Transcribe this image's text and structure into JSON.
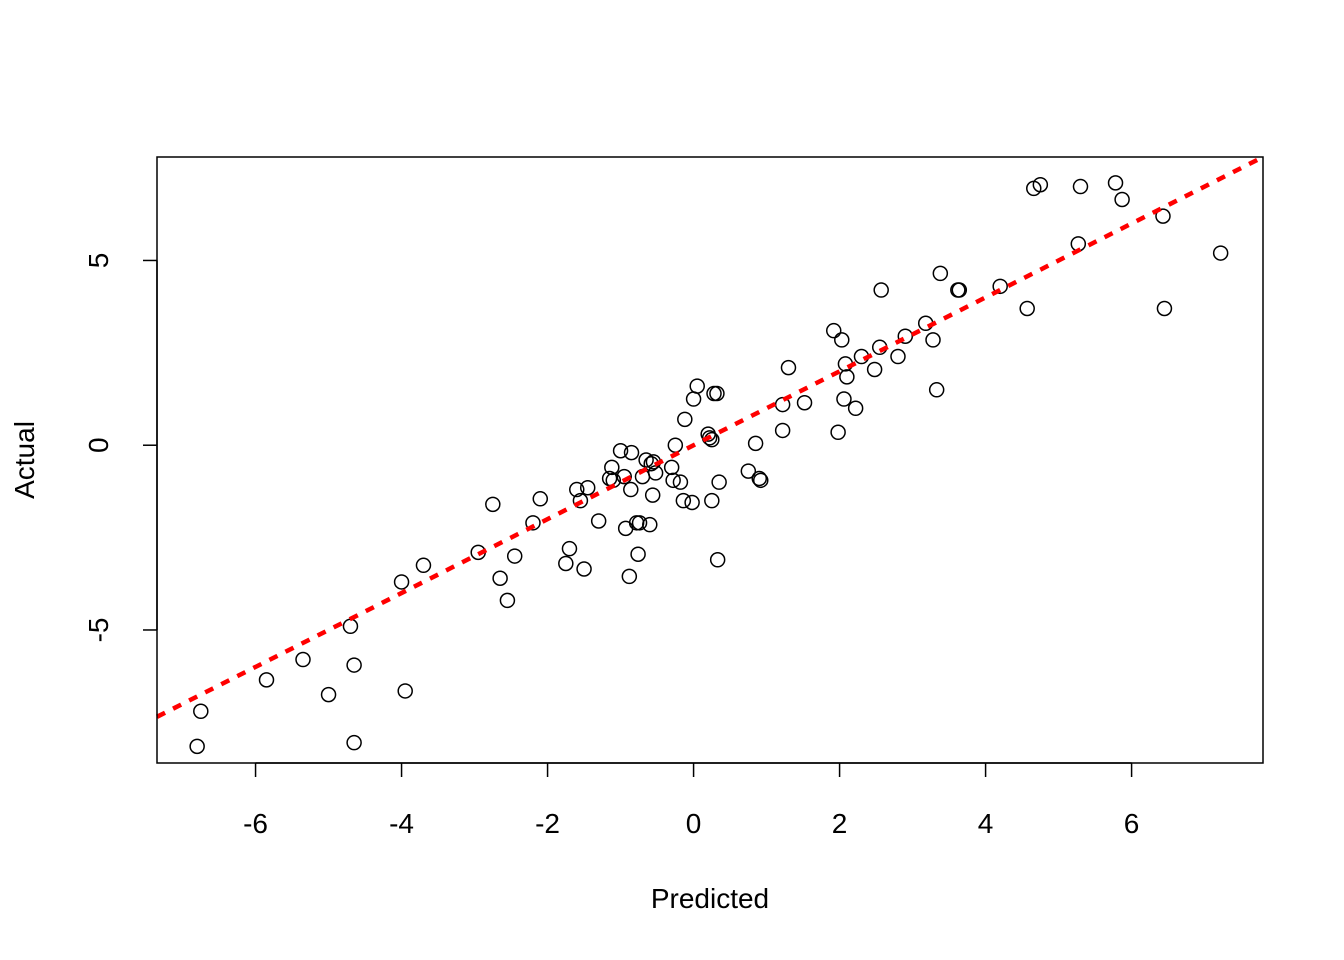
{
  "chart_data": {
    "type": "scatter",
    "title": "",
    "xlabel": "Predicted",
    "ylabel": "Actual",
    "xlim": [
      -7.35,
      7.8
    ],
    "ylim": [
      -8.6,
      7.8
    ],
    "xticks": [
      -6,
      -4,
      -2,
      0,
      2,
      4,
      6
    ],
    "yticks": [
      -5,
      0,
      5
    ],
    "xtick_labels": [
      "-6",
      "-4",
      "-2",
      "0",
      "2",
      "4",
      "6"
    ],
    "ytick_labels": [
      "-5",
      "0",
      "5"
    ],
    "grid": false,
    "reference_line": {
      "style": "dotted",
      "color": "#ff0000",
      "slope": 1,
      "intercept": 0
    },
    "series": [
      {
        "marker": "open-circle",
        "color": "#000000",
        "points": [
          [
            -6.8,
            -8.15
          ],
          [
            -6.75,
            -7.2
          ],
          [
            -5.85,
            -6.35
          ],
          [
            -5.35,
            -5.8
          ],
          [
            -5.0,
            -6.75
          ],
          [
            -4.7,
            -4.9
          ],
          [
            -4.65,
            -5.95
          ],
          [
            -4.65,
            -8.05
          ],
          [
            -4.0,
            -3.7
          ],
          [
            -3.95,
            -6.65
          ],
          [
            -3.7,
            -3.25
          ],
          [
            -2.95,
            -2.9
          ],
          [
            -2.75,
            -1.6
          ],
          [
            -2.65,
            -3.6
          ],
          [
            -2.55,
            -4.2
          ],
          [
            -2.45,
            -3.0
          ],
          [
            -2.2,
            -2.1
          ],
          [
            -2.1,
            -1.45
          ],
          [
            -1.75,
            -3.2
          ],
          [
            -1.7,
            -2.8
          ],
          [
            -1.6,
            -1.2
          ],
          [
            -1.55,
            -1.5
          ],
          [
            -1.5,
            -3.35
          ],
          [
            -1.45,
            -1.15
          ],
          [
            -1.3,
            -2.05
          ],
          [
            -1.15,
            -0.9
          ],
          [
            -1.12,
            -0.6
          ],
          [
            -1.1,
            -0.95
          ],
          [
            -1.0,
            -0.15
          ],
          [
            -0.95,
            -0.85
          ],
          [
            -0.93,
            -2.25
          ],
          [
            -0.88,
            -3.55
          ],
          [
            -0.86,
            -1.2
          ],
          [
            -0.85,
            -0.2
          ],
          [
            -0.78,
            -2.1
          ],
          [
            -0.76,
            -2.95
          ],
          [
            -0.74,
            -2.1
          ],
          [
            -0.7,
            -0.85
          ],
          [
            -0.65,
            -0.4
          ],
          [
            -0.6,
            -2.15
          ],
          [
            -0.58,
            -0.5
          ],
          [
            -0.56,
            -1.35
          ],
          [
            -0.55,
            -0.45
          ],
          [
            -0.52,
            -0.75
          ],
          [
            -0.3,
            -0.6
          ],
          [
            -0.28,
            -0.95
          ],
          [
            -0.25,
            0.0
          ],
          [
            -0.18,
            -1.0
          ],
          [
            -0.14,
            -1.5
          ],
          [
            -0.12,
            0.7
          ],
          [
            -0.02,
            -1.55
          ],
          [
            0.0,
            1.25
          ],
          [
            0.05,
            1.6
          ],
          [
            0.2,
            0.3
          ],
          [
            0.22,
            0.2
          ],
          [
            0.25,
            -1.5
          ],
          [
            0.25,
            0.15
          ],
          [
            0.28,
            1.4
          ],
          [
            0.32,
            1.4
          ],
          [
            0.33,
            -3.1
          ],
          [
            0.35,
            -1.0
          ],
          [
            0.75,
            -0.7
          ],
          [
            0.85,
            0.05
          ],
          [
            0.9,
            -0.9
          ],
          [
            0.92,
            -0.95
          ],
          [
            1.22,
            0.4
          ],
          [
            1.22,
            1.1
          ],
          [
            1.3,
            2.1
          ],
          [
            1.52,
            1.15
          ],
          [
            1.92,
            3.1
          ],
          [
            1.98,
            0.35
          ],
          [
            2.03,
            2.85
          ],
          [
            2.06,
            1.25
          ],
          [
            2.08,
            2.2
          ],
          [
            2.1,
            1.85
          ],
          [
            2.22,
            1.0
          ],
          [
            2.3,
            2.4
          ],
          [
            2.48,
            2.05
          ],
          [
            2.55,
            2.65
          ],
          [
            2.57,
            4.2
          ],
          [
            2.8,
            2.4
          ],
          [
            2.9,
            2.95
          ],
          [
            3.18,
            3.3
          ],
          [
            3.28,
            2.85
          ],
          [
            3.33,
            1.5
          ],
          [
            3.38,
            4.65
          ],
          [
            3.62,
            4.2
          ],
          [
            3.64,
            4.2
          ],
          [
            4.2,
            4.3
          ],
          [
            4.57,
            3.7
          ],
          [
            4.66,
            6.95
          ],
          [
            4.75,
            7.05
          ],
          [
            5.27,
            5.45
          ],
          [
            5.3,
            7.0
          ],
          [
            5.78,
            7.1
          ],
          [
            5.87,
            6.65
          ],
          [
            6.43,
            6.2
          ],
          [
            6.45,
            3.7
          ],
          [
            7.22,
            5.2
          ]
        ]
      }
    ]
  }
}
